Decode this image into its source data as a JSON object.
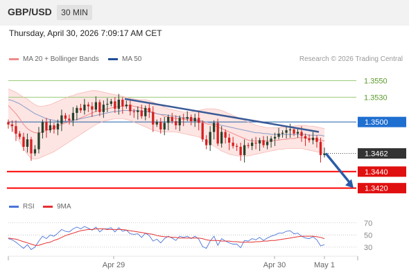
{
  "header": {
    "pair": "GBP/USD",
    "timeframe": "30 MIN"
  },
  "datetime": "Thursday, April 30, 2026 7:09:17 AM CET",
  "legend": {
    "ma20": {
      "label": "MA 20 + Bollinger Bands",
      "color": "#f08a8a"
    },
    "ma50": {
      "label": "MA 50",
      "color": "#1f4e96"
    }
  },
  "credit": "Research © 2026 Trading Central",
  "rsi_legend": {
    "rsi": {
      "label": "RSI",
      "color": "#4a74d8"
    },
    "ma9": {
      "label": "9MA",
      "color": "#e53030"
    }
  },
  "colors": {
    "up": "#27402a",
    "down": "#d42020",
    "support": "#ff0000",
    "resistance_green": "#9acb7a",
    "pivot_blue": "#1f5fa8",
    "band_fill": "#fde2e0"
  },
  "chart_data": [
    {
      "type": "candlestick",
      "x_ticks": [
        "Apr 29",
        "Apr 30",
        "May 1"
      ],
      "ylim": [
        1.3408,
        1.3568
      ],
      "levels": [
        {
          "value": 1.355,
          "label": "1.3550",
          "kind": "resistance"
        },
        {
          "value": 1.353,
          "label": "1.3530",
          "kind": "resistance"
        },
        {
          "value": 1.35,
          "label": "1.3500",
          "kind": "pivot"
        },
        {
          "value": 1.344,
          "label": "1.3440",
          "kind": "support"
        },
        {
          "value": 1.342,
          "label": "1.3420",
          "kind": "support"
        }
      ],
      "last_price": {
        "value": 1.3462,
        "label": "1.3462"
      },
      "close": [
        1.3497,
        1.3495,
        1.3486,
        1.3482,
        1.347,
        1.3479,
        1.3462,
        1.3467,
        1.3487,
        1.35,
        1.349,
        1.3496,
        1.3491,
        1.3498,
        1.3508,
        1.3504,
        1.3502,
        1.3511,
        1.3517,
        1.3514,
        1.3521,
        1.3519,
        1.3515,
        1.3524,
        1.3512,
        1.3521,
        1.3522,
        1.3525,
        1.3516,
        1.3527,
        1.3519,
        1.3521,
        1.3513,
        1.3512,
        1.3514,
        1.3507,
        1.3517,
        1.3512,
        1.3497,
        1.35,
        1.3491,
        1.3499,
        1.3506,
        1.3501,
        1.3496,
        1.3505,
        1.3504,
        1.3506,
        1.3501,
        1.3505,
        1.3499,
        1.3479,
        1.3472,
        1.3488,
        1.3499,
        1.3474,
        1.3488,
        1.3481,
        1.3475,
        1.3471,
        1.347,
        1.346,
        1.3472,
        1.3471,
        1.3475,
        1.3474,
        1.3478,
        1.3472,
        1.3476,
        1.348,
        1.3482,
        1.3486,
        1.3487,
        1.349,
        1.3491,
        1.3486,
        1.3488,
        1.3483,
        1.348,
        1.3478,
        1.3481,
        1.3476,
        1.346,
        1.3462
      ],
      "ma20": [
        1.352,
        1.3515,
        1.351,
        1.3504,
        1.3497,
        1.3492,
        1.3489,
        1.3487,
        1.3487,
        1.3488,
        1.349,
        1.3491,
        1.3493,
        1.3495,
        1.3497,
        1.3499,
        1.35,
        1.3502,
        1.3503,
        1.3505,
        1.3507,
        1.3509,
        1.3511,
        1.3513,
        1.3514,
        1.3515,
        1.3516,
        1.3517,
        1.3518,
        1.3519,
        1.3519,
        1.352,
        1.352,
        1.3519,
        1.3518,
        1.3517,
        1.3516,
        1.3514,
        1.3512,
        1.351,
        1.3509,
        1.3507,
        1.3506,
        1.3505,
        1.3504,
        1.3504,
        1.3503,
        1.3503,
        1.3502,
        1.3502,
        1.3501,
        1.35,
        1.3498,
        1.3497,
        1.3496,
        1.3494,
        1.3492,
        1.349,
        1.3488,
        1.3486,
        1.3484,
        1.3482,
        1.348,
        1.3478,
        1.3477,
        1.3477,
        1.3477,
        1.3477,
        1.3477,
        1.3477,
        1.3478,
        1.3478,
        1.3479,
        1.3479,
        1.348,
        1.348,
        1.3481,
        1.3481,
        1.3481,
        1.348,
        1.348,
        1.3479,
        1.3478,
        1.3477
      ],
      "bb_upper": [
        1.354,
        1.3538,
        1.3536,
        1.3533,
        1.353,
        1.3528,
        1.3524,
        1.3521,
        1.3519,
        1.3519,
        1.352,
        1.3521,
        1.3523,
        1.3525,
        1.3527,
        1.3529,
        1.3531,
        1.3532,
        1.3534,
        1.3535,
        1.3536,
        1.3537,
        1.3538,
        1.3538,
        1.3537,
        1.3536,
        1.3535,
        1.3534,
        1.3533,
        1.3532,
        1.3531,
        1.353,
        1.3529,
        1.3528,
        1.3527,
        1.3527,
        1.3527,
        1.3526,
        1.3524,
        1.3522,
        1.352,
        1.3518,
        1.3516,
        1.3515,
        1.3514,
        1.3513,
        1.3512,
        1.3512,
        1.3512,
        1.3513,
        1.3514,
        1.3515,
        1.3516,
        1.3516,
        1.3516,
        1.3515,
        1.3514,
        1.3512,
        1.351,
        1.3508,
        1.3506,
        1.3504,
        1.3502,
        1.35,
        1.3498,
        1.3496,
        1.3495,
        1.3494,
        1.3493,
        1.3493,
        1.3493,
        1.3493,
        1.3494,
        1.3494,
        1.3495,
        1.3495,
        1.3496,
        1.3496,
        1.3496,
        1.3495,
        1.3495,
        1.3494,
        1.3493,
        1.3492
      ],
      "bb_lower": [
        1.35,
        1.3492,
        1.3484,
        1.3476,
        1.3468,
        1.3461,
        1.3456,
        1.3455,
        1.3456,
        1.3458,
        1.346,
        1.3462,
        1.3464,
        1.3467,
        1.347,
        1.3473,
        1.3476,
        1.3479,
        1.3482,
        1.3485,
        1.3488,
        1.3491,
        1.3494,
        1.3497,
        1.3499,
        1.3501,
        1.3502,
        1.3503,
        1.3504,
        1.3504,
        1.3504,
        1.3503,
        1.3502,
        1.35,
        1.3498,
        1.3496,
        1.3494,
        1.3492,
        1.349,
        1.3489,
        1.3488,
        1.3488,
        1.3488,
        1.3488,
        1.3488,
        1.3487,
        1.3486,
        1.3485,
        1.3484,
        1.3483,
        1.3482,
        1.348,
        1.3477,
        1.3474,
        1.3471,
        1.3468,
        1.3465,
        1.3463,
        1.3461,
        1.346,
        1.3459,
        1.3459,
        1.3459,
        1.3459,
        1.346,
        1.3461,
        1.3462,
        1.3463,
        1.3464,
        1.3465,
        1.3466,
        1.3467,
        1.3467,
        1.3468,
        1.3468,
        1.3468,
        1.3468,
        1.3468,
        1.3467,
        1.3466,
        1.3465,
        1.3464,
        1.3463,
        1.3462
      ],
      "ma50": [
        1.3527,
        1.3526,
        1.3524,
        1.3522,
        1.3519,
        1.3516,
        1.3513,
        1.351,
        1.3508,
        1.3506,
        1.3504,
        1.3503,
        1.3502,
        1.3501,
        1.3501,
        1.3501,
        1.3501,
        1.3502,
        1.3503,
        1.3504,
        1.3505,
        1.3506,
        1.3507,
        1.3508,
        1.3509,
        1.351,
        1.3511,
        1.3512,
        1.3513,
        1.3513,
        1.3514,
        1.3514,
        1.3514,
        1.3514,
        1.3514,
        1.3513,
        1.3513,
        1.3512,
        1.3511,
        1.351,
        1.3509,
        1.3509,
        1.3508,
        1.3507,
        1.3507,
        1.3506,
        1.3505,
        1.3505,
        1.3504,
        1.3503,
        1.3502,
        1.3501,
        1.35,
        1.3499,
        1.3498,
        1.3497,
        1.3496,
        1.3495,
        1.3494,
        1.3493,
        1.3492,
        1.3491,
        1.349,
        1.3489,
        1.3488,
        1.3487,
        1.3487,
        1.3486,
        1.3486,
        1.3485,
        1.3485,
        1.3485,
        1.3485,
        1.3485,
        1.3485,
        1.3485,
        1.3485,
        1.3485,
        1.3485,
        1.3484,
        1.3484,
        1.3484,
        1.3484,
        1.3483
      ],
      "trendline": [
        [
          1.3528,
          1.3488
        ]
      ],
      "forecast_arrow": [
        1.3462,
        1.342
      ]
    },
    {
      "type": "line",
      "name": "RSI",
      "y_ticks": [
        "70",
        "50",
        "30"
      ],
      "ylim": [
        15,
        80
      ],
      "rsi": [
        44,
        42,
        38,
        33,
        28,
        34,
        26,
        30,
        40,
        48,
        44,
        50,
        48,
        53,
        59,
        56,
        55,
        60,
        63,
        60,
        64,
        61,
        58,
        63,
        55,
        60,
        60,
        62,
        55,
        62,
        56,
        58,
        52,
        51,
        52,
        46,
        53,
        49,
        40,
        43,
        37,
        44,
        48,
        45,
        41,
        48,
        46,
        48,
        44,
        48,
        43,
        31,
        28,
        40,
        48,
        33,
        44,
        40,
        37,
        35,
        35,
        29,
        41,
        40,
        44,
        42,
        46,
        41,
        45,
        48,
        50,
        53,
        53,
        56,
        57,
        52,
        53,
        48,
        45,
        44,
        47,
        42,
        32,
        34
      ],
      "ma9": [
        45,
        44,
        43,
        41,
        39,
        37,
        35,
        33,
        33,
        35,
        37,
        38,
        41,
        43,
        46,
        49,
        51,
        53,
        55,
        57,
        58,
        59,
        59,
        60,
        60,
        60,
        59,
        59,
        59,
        59,
        59,
        58,
        57,
        56,
        55,
        54,
        53,
        52,
        51,
        49,
        48,
        47,
        47,
        46,
        46,
        45,
        45,
        45,
        45,
        45,
        45,
        44,
        42,
        41,
        41,
        41,
        40,
        40,
        40,
        39,
        39,
        38,
        38,
        38,
        38,
        39,
        39,
        40,
        40,
        41,
        41,
        42,
        43,
        44,
        45,
        46,
        47,
        48,
        48,
        48,
        48,
        47,
        46,
        44
      ]
    }
  ]
}
